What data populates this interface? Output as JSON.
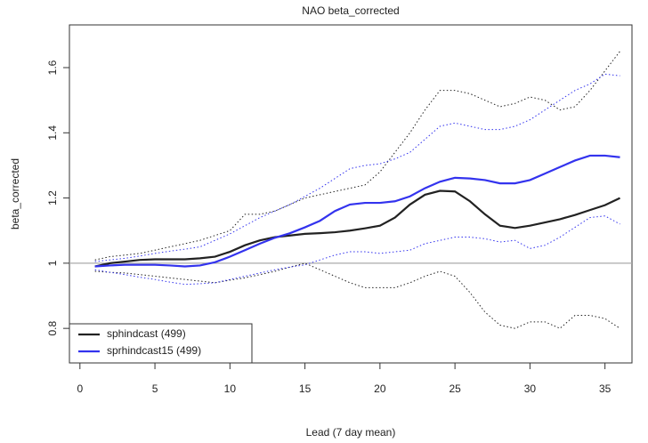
{
  "chart_data": {
    "type": "line",
    "title": "NAO beta_corrected",
    "x_label": "Lead (7 day mean)",
    "y_label": "beta_corrected",
    "x": [
      1,
      2,
      3,
      4,
      5,
      6,
      7,
      8,
      9,
      10,
      11,
      12,
      13,
      14,
      15,
      16,
      17,
      18,
      19,
      20,
      21,
      22,
      23,
      24,
      25,
      26,
      27,
      28,
      29,
      30,
      31,
      32,
      33,
      34,
      35,
      36
    ],
    "series": [
      {
        "name": "sphindcast (499)",
        "color": "#222222",
        "values": [
          0.99,
          1.0,
          1.005,
          1.01,
          1.012,
          1.012,
          1.012,
          1.015,
          1.02,
          1.035,
          1.055,
          1.07,
          1.08,
          1.085,
          1.09,
          1.092,
          1.095,
          1.1,
          1.107,
          1.115,
          1.14,
          1.18,
          1.21,
          1.222,
          1.22,
          1.19,
          1.15,
          1.115,
          1.108,
          1.115,
          1.125,
          1.135,
          1.148,
          1.163,
          1.178,
          1.2
        ],
        "upper": [
          1.01,
          1.02,
          1.025,
          1.03,
          1.04,
          1.05,
          1.06,
          1.07,
          1.085,
          1.1,
          1.15,
          1.15,
          1.16,
          1.18,
          1.2,
          1.21,
          1.22,
          1.23,
          1.24,
          1.28,
          1.34,
          1.4,
          1.47,
          1.53,
          1.53,
          1.52,
          1.5,
          1.48,
          1.49,
          1.51,
          1.5,
          1.47,
          1.48,
          1.53,
          1.59,
          1.65
        ],
        "lower": [
          0.975,
          0.972,
          0.97,
          0.965,
          0.96,
          0.955,
          0.95,
          0.945,
          0.94,
          0.948,
          0.955,
          0.965,
          0.975,
          0.988,
          1.0,
          0.98,
          0.96,
          0.94,
          0.925,
          0.925,
          0.925,
          0.94,
          0.96,
          0.975,
          0.96,
          0.91,
          0.85,
          0.81,
          0.8,
          0.82,
          0.82,
          0.8,
          0.84,
          0.84,
          0.83,
          0.8
        ]
      },
      {
        "name": "sprhindcast15 (499)",
        "color": "#3333ee",
        "values": [
          0.99,
          0.993,
          0.995,
          0.995,
          0.995,
          0.993,
          0.99,
          0.993,
          1.003,
          1.02,
          1.04,
          1.06,
          1.078,
          1.092,
          1.11,
          1.13,
          1.16,
          1.18,
          1.185,
          1.185,
          1.19,
          1.205,
          1.23,
          1.25,
          1.262,
          1.26,
          1.255,
          1.245,
          1.245,
          1.255,
          1.275,
          1.295,
          1.315,
          1.33,
          1.33,
          1.325
        ],
        "upper": [
          1.005,
          1.01,
          1.015,
          1.022,
          1.03,
          1.037,
          1.043,
          1.05,
          1.07,
          1.09,
          1.115,
          1.14,
          1.16,
          1.18,
          1.205,
          1.23,
          1.26,
          1.29,
          1.3,
          1.305,
          1.32,
          1.34,
          1.38,
          1.42,
          1.43,
          1.42,
          1.41,
          1.41,
          1.42,
          1.44,
          1.47,
          1.5,
          1.53,
          1.55,
          1.58,
          1.575
        ],
        "lower": [
          0.98,
          0.972,
          0.965,
          0.957,
          0.95,
          0.942,
          0.935,
          0.937,
          0.94,
          0.95,
          0.96,
          0.97,
          0.98,
          0.988,
          0.995,
          1.01,
          1.025,
          1.035,
          1.035,
          1.03,
          1.035,
          1.04,
          1.06,
          1.07,
          1.08,
          1.08,
          1.075,
          1.065,
          1.07,
          1.045,
          1.055,
          1.08,
          1.11,
          1.14,
          1.145,
          1.12
        ]
      }
    ],
    "hline": 1.0,
    "hline_color": "#aaaaaa",
    "xlim": [
      -0.7,
      36.8
    ],
    "xticks": [
      0,
      5,
      10,
      15,
      20,
      25,
      30,
      35
    ],
    "ylim": [
      0.694,
      1.731
    ],
    "yticks": [
      0.8,
      1.0,
      1.2,
      1.4,
      1.6
    ],
    "legend": "bottomleft"
  }
}
